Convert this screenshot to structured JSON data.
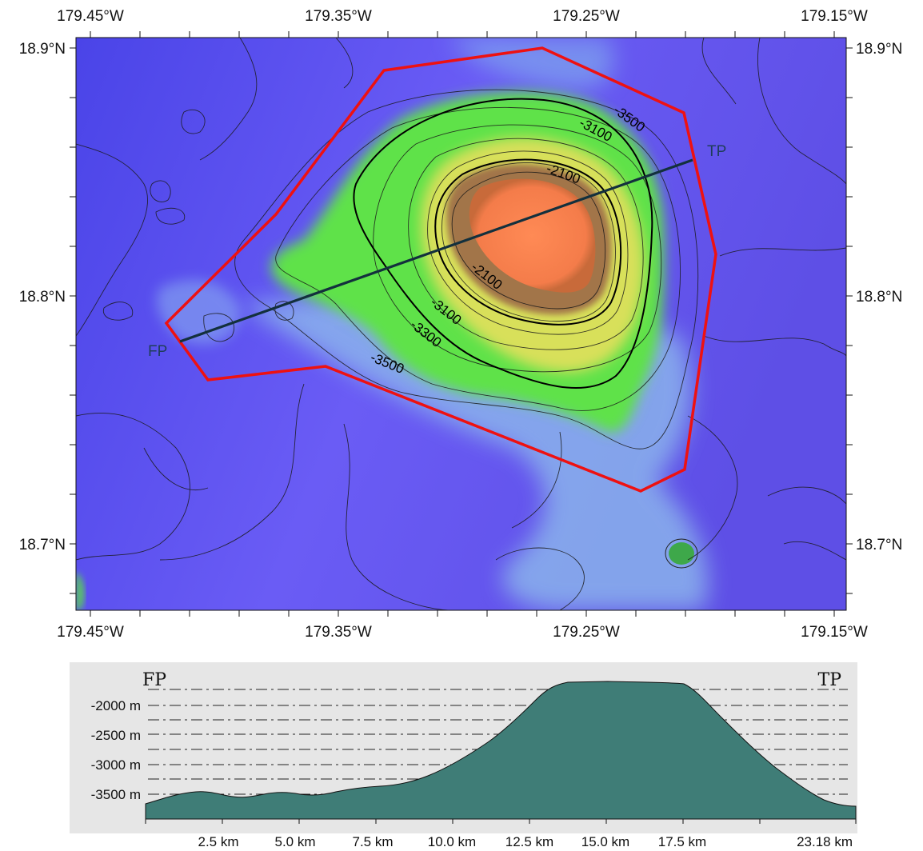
{
  "map": {
    "lon_labels": [
      "179.45°W",
      "179.35°W",
      "179.25°W",
      "179.15°W"
    ],
    "lat_labels": [
      "18.9°N",
      "18.8°N",
      "18.7°N"
    ],
    "contour_labels": [
      "-3500",
      "-3100",
      "-2100",
      "-2100",
      "-3100",
      "-3300",
      "-3500"
    ],
    "profile_start_label": "FP",
    "profile_end_label": "TP",
    "colors": {
      "deep": "#5b4ff0",
      "mid": "#7fb4ee",
      "shoal": "#5fe24a",
      "summit": "#ff8a55",
      "outline": "#ee1111",
      "profile_line": "#13303d"
    }
  },
  "profile": {
    "start_label": "FP",
    "end_label": "TP",
    "y_labels": [
      "-2000 m",
      "-2500 m",
      "-3000 m",
      "-3500 m"
    ],
    "x_labels": [
      "2.5 km",
      "5.0 km",
      "7.5 km",
      "10.0 km",
      "12.5 km",
      "15.0 km",
      "17.5 km",
      "23.18 km"
    ],
    "fill_color": "#3f7d77",
    "background_color": "#e6e6e6"
  }
}
